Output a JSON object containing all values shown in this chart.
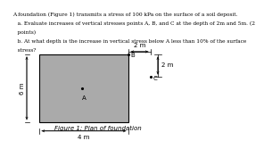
{
  "title_text": "Figure 1: Plan of foundation",
  "header_lines": [
    "A foundation (Figure 1) transmits a stress of 100 kPa on the surface of a soil deposit.",
    "   a. Evaluate increases of vertical stresses points A, B, and C at the depth of 2m and 5m. (2",
    "   points)",
    "   b. At what depth is the increase in vertical stress below A less than 10% of the surface",
    "   stress?"
  ],
  "rect_color": "#aaaaaa",
  "rect_edge": "#000000",
  "bg_color": "#ffffff",
  "fontsize_header": 4.2,
  "fontsize_labels": 5.0,
  "fontsize_title": 5.0,
  "fontsize_points": 5.0
}
